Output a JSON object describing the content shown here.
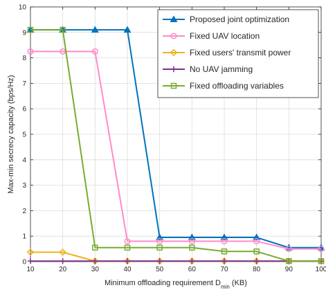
{
  "chart_data": {
    "type": "line",
    "title": "",
    "xlabel": "Minimum offloading requirement D",
    "xlabel_subscript": "min",
    "xlabel_suffix": " (KB)",
    "ylabel": "Max-min secrecy capacity (bps/Hz)",
    "x": [
      10,
      20,
      30,
      40,
      50,
      60,
      70,
      80,
      90,
      100
    ],
    "xlim": [
      10,
      100
    ],
    "ylim": [
      0,
      10
    ],
    "xticks": [
      "10",
      "20",
      "30",
      "40",
      "50",
      "60",
      "70",
      "80",
      "90",
      "100"
    ],
    "yticks": [
      "0",
      "1",
      "2",
      "3",
      "4",
      "5",
      "6",
      "7",
      "8",
      "9",
      "10"
    ],
    "grid": true,
    "legend_position": "top-right",
    "series": [
      {
        "name": "Proposed joint optimization",
        "color": "#0072BD",
        "marker": "triangle",
        "values": [
          9.1,
          9.1,
          9.1,
          9.1,
          0.95,
          0.95,
          0.95,
          0.95,
          0.55,
          0.55
        ]
      },
      {
        "name": "Fixed UAV location",
        "color": "#FF8AC8",
        "marker": "circle",
        "values": [
          8.25,
          8.25,
          8.25,
          0.8,
          0.8,
          0.8,
          0.8,
          0.8,
          0.5,
          0.5
        ]
      },
      {
        "name": "Fixed users' transmit power",
        "color": "#EDB120",
        "marker": "diamond",
        "values": [
          0.37,
          0.37,
          0.02,
          0.02,
          0.02,
          0.02,
          0.02,
          0.02,
          0.02,
          0.02
        ]
      },
      {
        "name": "No UAV jamming",
        "color": "#7E2F8E",
        "marker": "plus",
        "values": [
          0.02,
          0.02,
          0.02,
          0.02,
          0.02,
          0.02,
          0.02,
          0.02,
          0.02,
          0.02
        ]
      },
      {
        "name": "Fixed offloading variables",
        "color": "#77AC30",
        "marker": "square",
        "values": [
          9.1,
          9.1,
          0.55,
          0.55,
          0.55,
          0.55,
          0.4,
          0.4,
          0.02,
          0.02
        ]
      }
    ]
  }
}
